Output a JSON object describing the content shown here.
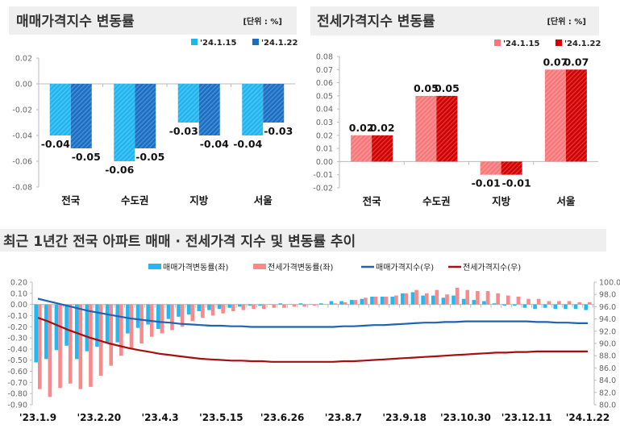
{
  "chart_data": [
    {
      "type": "bar",
      "title": "매매가격지수 변동률",
      "unit": "[단위 : %]",
      "categories": [
        "전국",
        "수도권",
        "지방",
        "서울"
      ],
      "series": [
        {
          "name": "'24.1.15",
          "values": [
            -0.04,
            -0.06,
            -0.03,
            -0.04
          ],
          "color": "#1fb5ef"
        },
        {
          "name": "'24.1.22",
          "values": [
            -0.05,
            -0.05,
            -0.04,
            -0.03
          ],
          "color": "#1a6fc4"
        }
      ],
      "ylim": [
        -0.08,
        0.02
      ],
      "yticks": [
        "0.02",
        "0.00",
        "-0.02",
        "-0.04",
        "-0.06",
        "-0.08"
      ],
      "legend": "top-right",
      "grid": false
    },
    {
      "type": "bar",
      "title": "전세가격지수 변동률",
      "unit": "[단위 : %]",
      "categories": [
        "전국",
        "수도권",
        "지방",
        "서울"
      ],
      "series": [
        {
          "name": "'24.1.15",
          "values": [
            0.02,
            0.05,
            -0.01,
            0.07
          ],
          "color": "#f6787a"
        },
        {
          "name": "'24.1.22",
          "values": [
            0.02,
            0.05,
            -0.01,
            0.07
          ],
          "color": "#d20000"
        }
      ],
      "ylim": [
        -0.02,
        0.08
      ],
      "yticks": [
        "0.08",
        "0.07",
        "0.06",
        "0.05",
        "0.04",
        "0.03",
        "0.02",
        "0.01",
        "0.00",
        "-0.01",
        "-0.02"
      ],
      "legend": "top-right",
      "grid": false
    },
    {
      "type": "bar+line",
      "title": "최근 1년간 전국 아파트 매매 · 전세가격 지수 및 변동률 추이",
      "xticks": [
        "'23.1.9",
        "'23.2.20",
        "'23.4.3",
        "'23.5.15",
        "'23.6.26",
        "'23.8.7",
        "'23.9.18",
        "'23.10.30",
        "'23.12.11",
        "'24.1.22"
      ],
      "xtick_every_weeks": 6,
      "ylim_left": [
        -0.9,
        0.2
      ],
      "yticks_left": [
        "0.20",
        "0.10",
        "0.00",
        "-0.10",
        "-0.20",
        "-0.30",
        "-0.40",
        "-0.50",
        "-0.60",
        "-0.70",
        "-0.80",
        "-0.90"
      ],
      "ylim_right": [
        80,
        100
      ],
      "yticks_right": [
        "100.0",
        "98.0",
        "96.0",
        "94.0",
        "92.0",
        "90.0",
        "88.0",
        "86.0",
        "84.0",
        "82.0",
        "80.0"
      ],
      "legend": "top",
      "series": [
        {
          "name": "매매가격변동률(좌)",
          "kind": "bar",
          "axis": "left",
          "color": "#22b8f0",
          "values": [
            -0.52,
            -0.49,
            -0.41,
            -0.37,
            -0.49,
            -0.42,
            -0.38,
            -0.34,
            -0.34,
            -0.26,
            -0.21,
            -0.18,
            -0.22,
            -0.13,
            -0.11,
            -0.09,
            -0.06,
            -0.05,
            -0.04,
            -0.03,
            -0.02,
            -0.01,
            -0.01,
            0.0,
            0.01,
            0.0,
            0.01,
            0.0,
            0.01,
            0.03,
            0.03,
            0.04,
            0.05,
            0.07,
            0.07,
            0.07,
            0.1,
            0.11,
            0.08,
            0.08,
            0.06,
            0.08,
            0.05,
            0.04,
            0.03,
            0.01,
            -0.01,
            -0.01,
            -0.03,
            -0.04,
            -0.03,
            -0.04,
            -0.04,
            -0.04,
            -0.05
          ]
        },
        {
          "name": "전세가격변동률(좌)",
          "kind": "bar",
          "axis": "left",
          "color": "#f88a8c",
          "values": [
            -0.76,
            -0.83,
            -0.75,
            -0.71,
            -0.76,
            -0.74,
            -0.64,
            -0.55,
            -0.46,
            -0.4,
            -0.35,
            -0.29,
            -0.26,
            -0.23,
            -0.2,
            -0.15,
            -0.12,
            -0.1,
            -0.08,
            -0.06,
            -0.05,
            -0.04,
            -0.04,
            -0.03,
            -0.03,
            -0.02,
            -0.02,
            -0.01,
            0.0,
            0.01,
            0.02,
            0.04,
            0.06,
            0.07,
            0.07,
            0.08,
            0.1,
            0.13,
            0.1,
            0.13,
            0.09,
            0.15,
            0.13,
            0.12,
            0.12,
            0.1,
            0.08,
            0.07,
            0.05,
            0.05,
            0.03,
            0.03,
            0.03,
            0.02,
            0.02
          ]
        },
        {
          "name": "매매가격지수(우)",
          "kind": "line",
          "axis": "right",
          "color": "#1f64b0",
          "values": [
            97.3,
            96.9,
            96.5,
            96.1,
            95.7,
            95.3,
            95.0,
            94.7,
            94.4,
            94.1,
            93.9,
            93.7,
            93.5,
            93.4,
            93.2,
            93.1,
            93.0,
            92.9,
            92.9,
            92.8,
            92.8,
            92.7,
            92.7,
            92.7,
            92.7,
            92.7,
            92.7,
            92.7,
            92.7,
            92.7,
            92.8,
            92.8,
            92.9,
            93.0,
            93.0,
            93.1,
            93.2,
            93.3,
            93.4,
            93.4,
            93.5,
            93.5,
            93.6,
            93.6,
            93.6,
            93.6,
            93.6,
            93.6,
            93.6,
            93.5,
            93.5,
            93.4,
            93.4,
            93.3,
            93.3
          ]
        },
        {
          "name": "전세가격지수(우)",
          "kind": "line",
          "axis": "right",
          "color": "#a50f0f",
          "values": [
            94.2,
            93.6,
            92.9,
            92.2,
            91.6,
            91.0,
            90.5,
            90.0,
            89.6,
            89.2,
            88.9,
            88.6,
            88.3,
            88.1,
            87.9,
            87.7,
            87.5,
            87.4,
            87.3,
            87.2,
            87.2,
            87.1,
            87.1,
            87.0,
            87.0,
            87.0,
            87.0,
            87.0,
            87.0,
            87.0,
            87.1,
            87.1,
            87.2,
            87.3,
            87.4,
            87.5,
            87.6,
            87.7,
            87.8,
            87.9,
            88.0,
            88.1,
            88.2,
            88.3,
            88.4,
            88.5,
            88.5,
            88.6,
            88.6,
            88.7,
            88.7,
            88.7,
            88.7,
            88.7,
            88.7
          ]
        }
      ]
    }
  ]
}
